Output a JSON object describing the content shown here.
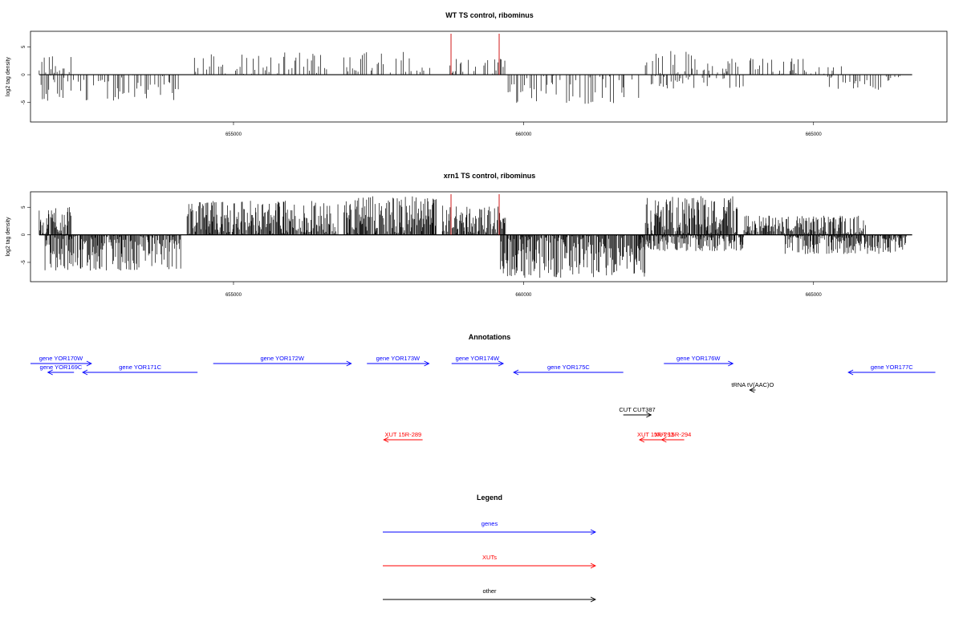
{
  "colors": {
    "gene": "#0000ff",
    "xut": "#ff0000",
    "other": "#000000",
    "signal": "#000000",
    "marker": "#cc0000"
  },
  "chart_data": [
    {
      "type": "bar",
      "title": "WT TS control, ribominus",
      "ylabel": "log2 tag density",
      "x_ticks": [
        655000,
        660000,
        665000
      ],
      "x_tick_labels": [
        "655000",
        "660000",
        "665000"
      ],
      "xlim": [
        651500,
        667300
      ],
      "y_ticks": [
        -5,
        0,
        5
      ],
      "y_tick_labels": [
        "-5",
        "0",
        "5"
      ],
      "ylim": [
        -8.5,
        7.8
      ],
      "markers_x": [
        658750,
        659580
      ],
      "density": "sparse",
      "signal_segments": [
        {
          "start": 651650,
          "end": 652200,
          "sign": 1,
          "max": 4.0
        },
        {
          "start": 651650,
          "end": 654100,
          "sign": -1,
          "max": 4.7
        },
        {
          "start": 654200,
          "end": 656700,
          "sign": 1,
          "max": 4.0
        },
        {
          "start": 656900,
          "end": 658400,
          "sign": 1,
          "max": 4.5
        },
        {
          "start": 658700,
          "end": 659700,
          "sign": 1,
          "max": 3.0
        },
        {
          "start": 659700,
          "end": 662000,
          "sign": -1,
          "max": 5.5
        },
        {
          "start": 662100,
          "end": 663700,
          "sign": 1,
          "max": 4.3
        },
        {
          "start": 662200,
          "end": 663800,
          "sign": -1,
          "max": 2.5
        },
        {
          "start": 663900,
          "end": 665500,
          "sign": 1,
          "max": 3.0
        },
        {
          "start": 665200,
          "end": 666500,
          "sign": -1,
          "max": 2.8
        }
      ]
    },
    {
      "type": "bar",
      "title": "xrn1 TS control, ribominus",
      "ylabel": "log2 tag density",
      "x_ticks": [
        655000,
        660000,
        665000
      ],
      "x_tick_labels": [
        "655000",
        "660000",
        "665000"
      ],
      "xlim": [
        651500,
        667300
      ],
      "y_ticks": [
        -5,
        0,
        5
      ],
      "y_tick_labels": [
        "-5",
        "0",
        "5"
      ],
      "ylim": [
        -8.5,
        7.8
      ],
      "markers_x": [
        658750,
        659580
      ],
      "density": "dense",
      "signal_segments": [
        {
          "start": 651650,
          "end": 652200,
          "sign": 1,
          "max": 5.2
        },
        {
          "start": 651750,
          "end": 654100,
          "sign": -1,
          "max": 6.5
        },
        {
          "start": 654200,
          "end": 656800,
          "sign": 1,
          "max": 6.2
        },
        {
          "start": 656900,
          "end": 658500,
          "sign": 1,
          "max": 7.0
        },
        {
          "start": 658600,
          "end": 659700,
          "sign": 1,
          "max": 5.5
        },
        {
          "start": 659600,
          "end": 662100,
          "sign": -1,
          "max": 7.8
        },
        {
          "start": 662100,
          "end": 663700,
          "sign": 1,
          "max": 7.0
        },
        {
          "start": 662000,
          "end": 663800,
          "sign": -1,
          "max": 3.0
        },
        {
          "start": 663800,
          "end": 665900,
          "sign": 1,
          "max": 3.5
        },
        {
          "start": 664500,
          "end": 666600,
          "sign": -1,
          "max": 3.5
        }
      ]
    }
  ],
  "annotations": {
    "title": "Annotations",
    "features": [
      {
        "label": "gene YOR170W",
        "type": "gene",
        "strand": "+",
        "start": 651500,
        "end": 652550,
        "row": 1
      },
      {
        "label": "gene YOR169C",
        "type": "gene",
        "strand": "-",
        "start": 651800,
        "end": 652250,
        "row": 2
      },
      {
        "label": "gene YOR171C",
        "type": "gene",
        "strand": "-",
        "start": 652400,
        "end": 654380,
        "row": 2
      },
      {
        "label": "gene YOR172W",
        "type": "gene",
        "strand": "+",
        "start": 654650,
        "end": 657030,
        "row": 1
      },
      {
        "label": "gene YOR173W",
        "type": "gene",
        "strand": "+",
        "start": 657300,
        "end": 658370,
        "row": 1
      },
      {
        "label": "gene YOR174W",
        "type": "gene",
        "strand": "+",
        "start": 658760,
        "end": 659650,
        "row": 1
      },
      {
        "label": "gene YOR175C",
        "type": "gene",
        "strand": "-",
        "start": 659830,
        "end": 661720,
        "row": 2
      },
      {
        "label": "gene YOR176W",
        "type": "gene",
        "strand": "+",
        "start": 662420,
        "end": 663610,
        "row": 1
      },
      {
        "label": "gene YOR177C",
        "type": "gene",
        "strand": "-",
        "start": 665600,
        "end": 667100,
        "row": 2
      },
      {
        "label": "tRNA tV(AAC)O",
        "type": "other",
        "strand": "-",
        "start": 663900,
        "end": 664000,
        "row": 3
      },
      {
        "label": "CUT CUT387",
        "type": "other",
        "strand": "+",
        "start": 661720,
        "end": 662200,
        "row": 4
      },
      {
        "label": "XUT 15R-289",
        "type": "xut",
        "strand": "-",
        "start": 657590,
        "end": 658260,
        "row": 5
      },
      {
        "label": "XUT 15R-293",
        "type": "xut",
        "strand": "-",
        "start": 662000,
        "end": 662550,
        "row": 5
      },
      {
        "label": "XUT 15R-294",
        "type": "xut",
        "strand": "-",
        "start": 662380,
        "end": 662770,
        "row": 5
      }
    ]
  },
  "legend": {
    "title": "Legend",
    "entries": [
      {
        "label": "genes",
        "type": "gene"
      },
      {
        "label": "XUTs",
        "type": "xut"
      },
      {
        "label": "other",
        "type": "other"
      }
    ]
  }
}
